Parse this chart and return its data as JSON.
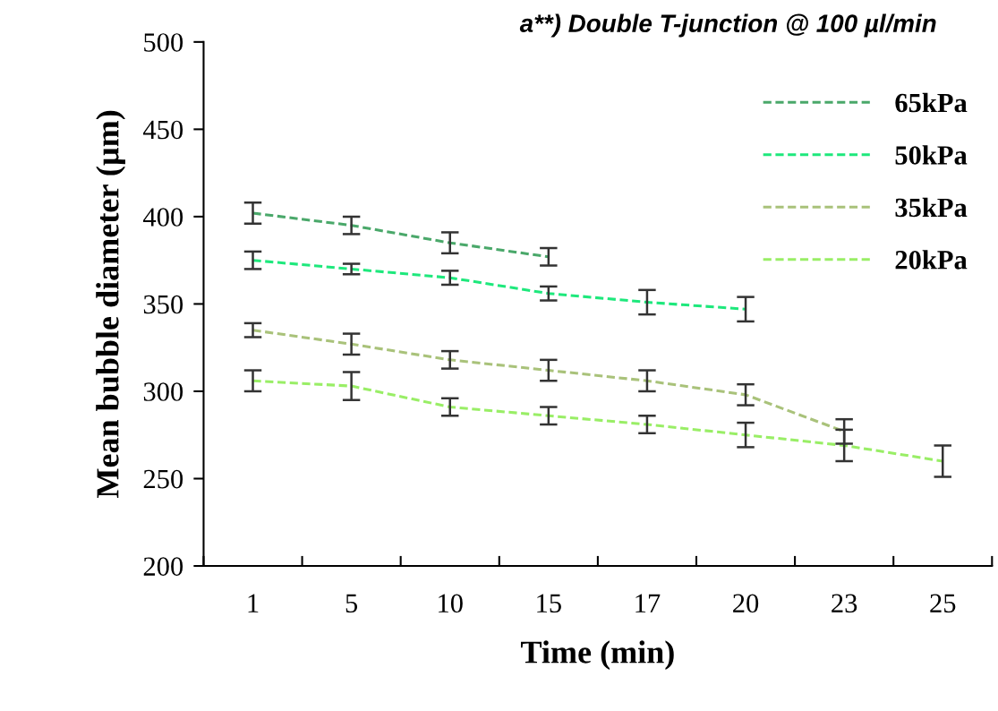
{
  "chart_data": {
    "type": "line",
    "title": "a**) Double T-junction @ 100 µl/min",
    "xlabel": "Time (min)",
    "ylabel": "Mean bubble diameter (µm)",
    "categories": [
      "1",
      "5",
      "10",
      "15",
      "17",
      "20",
      "23",
      "25"
    ],
    "series": [
      {
        "name": "65kPa",
        "color": "#4aa86a",
        "values": [
          402,
          395,
          385,
          377,
          null,
          null,
          null,
          null
        ],
        "errors": [
          6,
          5,
          6,
          5,
          null,
          null,
          null,
          null
        ]
      },
      {
        "name": "50kPa",
        "color": "#1ee87c",
        "values": [
          375,
          370,
          365,
          356,
          351,
          347,
          null,
          null
        ],
        "errors": [
          5,
          3,
          4,
          4,
          7,
          7,
          null,
          null
        ]
      },
      {
        "name": "35kPa",
        "color": "#a9c27a",
        "values": [
          335,
          327,
          318,
          312,
          306,
          298,
          277,
          null
        ],
        "errors": [
          4,
          6,
          5,
          6,
          6,
          6,
          7,
          null
        ]
      },
      {
        "name": "20kPa",
        "color": "#99ee66",
        "values": [
          306,
          303,
          291,
          286,
          281,
          275,
          269,
          260
        ],
        "errors": [
          6,
          8,
          5,
          5,
          5,
          7,
          9,
          9
        ]
      }
    ],
    "ylim": [
      200,
      500
    ],
    "yticks": [
      200,
      250,
      300,
      350,
      400,
      450,
      500
    ],
    "grid": false,
    "legend": "top right",
    "line_style": "dashed",
    "marker": "none"
  }
}
